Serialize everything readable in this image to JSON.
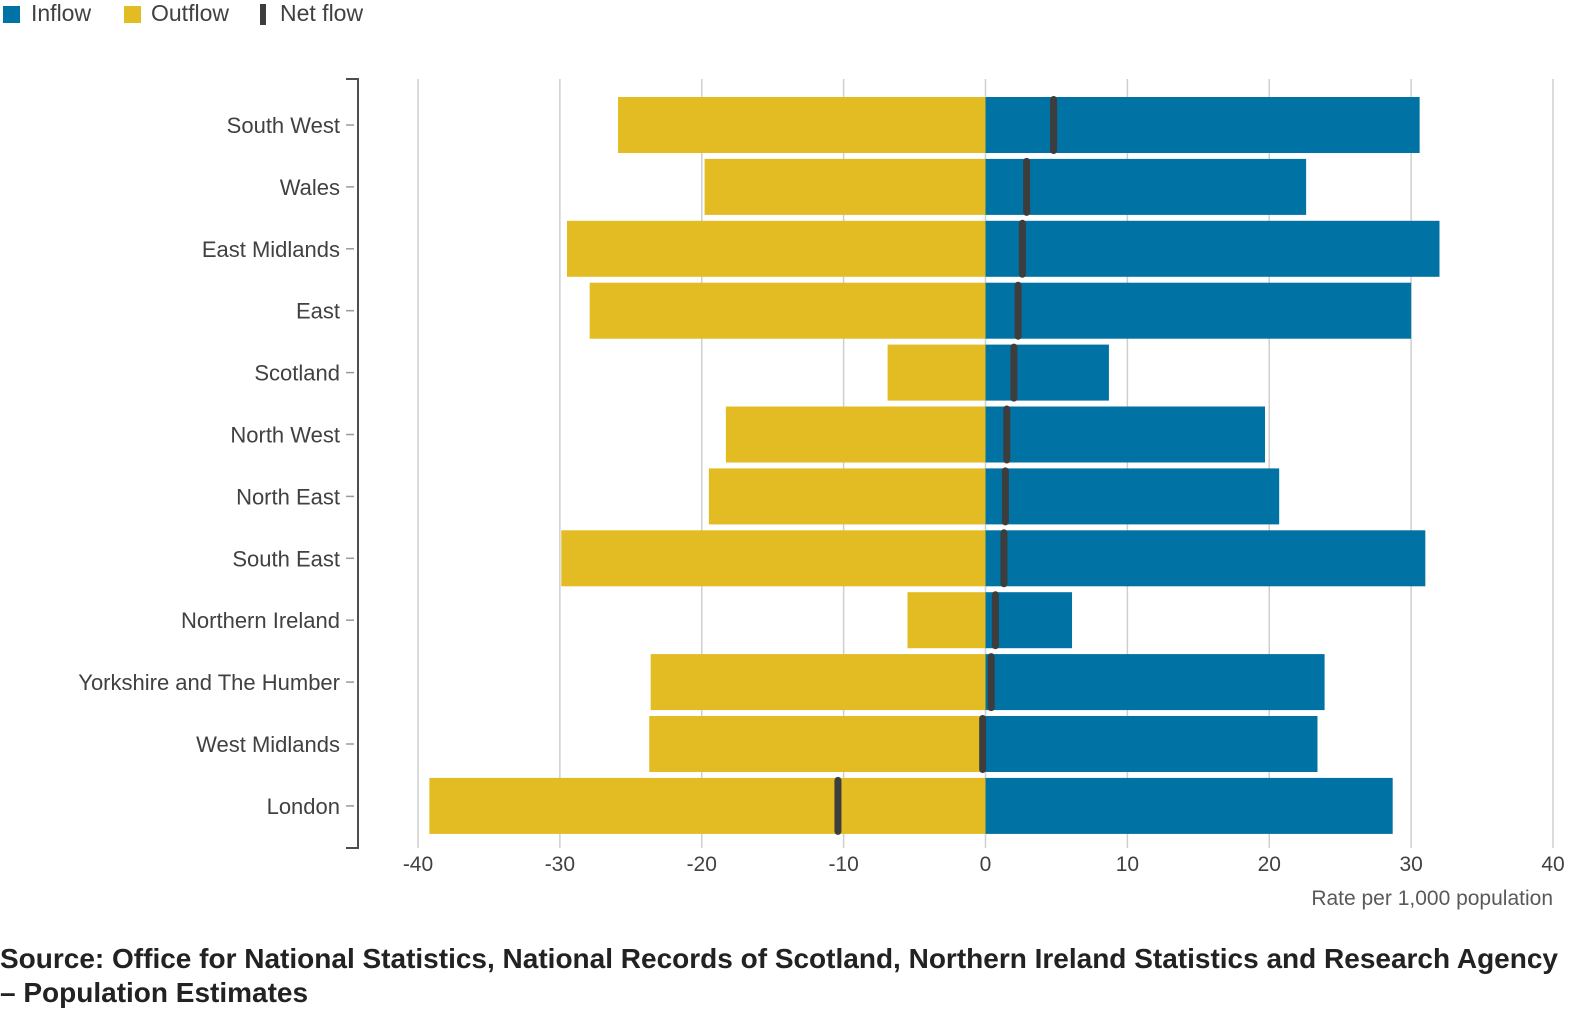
{
  "chart_data": {
    "type": "bar",
    "orientation": "horizontal",
    "title": "",
    "xlabel": "Rate per 1,000 population",
    "ylabel": "",
    "xlim": [
      -40,
      40
    ],
    "xticks": [
      -40,
      -30,
      -20,
      -10,
      0,
      10,
      20,
      30,
      40
    ],
    "grid": true,
    "legend_position": "top-left",
    "categories": [
      "South West",
      "Wales",
      "East Midlands",
      "East",
      "Scotland",
      "North West",
      "North East",
      "South East",
      "Northern Ireland",
      "Yorkshire and The Humber",
      "West Midlands",
      "London"
    ],
    "series": [
      {
        "name": "Inflow",
        "color": "#0072a4",
        "values": [
          30.6,
          22.6,
          32.0,
          30.0,
          8.7,
          19.7,
          20.7,
          31.0,
          6.1,
          23.9,
          23.4,
          28.7
        ]
      },
      {
        "name": "Outflow",
        "color": "#e2bc22",
        "values": [
          -25.9,
          -19.8,
          -29.5,
          -27.9,
          -6.9,
          -18.3,
          -19.5,
          -29.9,
          -5.5,
          -23.6,
          -23.7,
          -39.2
        ]
      },
      {
        "name": "Net flow",
        "color": "#3d3d3d",
        "values": [
          4.8,
          2.9,
          2.6,
          2.3,
          2.0,
          1.5,
          1.4,
          1.3,
          0.7,
          0.4,
          -0.2,
          -10.4
        ]
      }
    ]
  },
  "source": "Source: Office for National Statistics, National Records of Scotland, Northern Ireland Statistics and Research Agency – Population Estimates"
}
